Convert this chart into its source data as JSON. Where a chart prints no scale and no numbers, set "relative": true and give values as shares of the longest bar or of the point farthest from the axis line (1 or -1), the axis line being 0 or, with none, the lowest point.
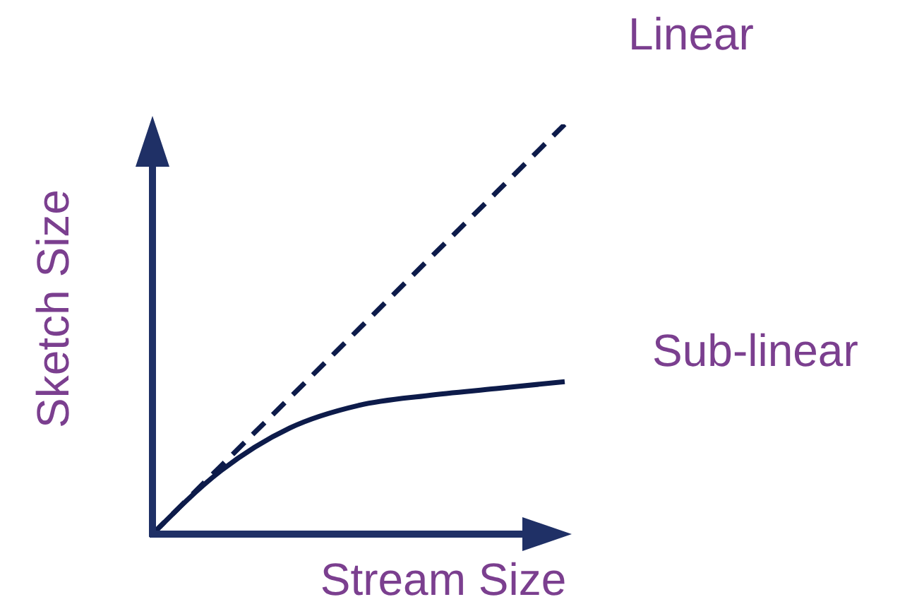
{
  "chart_data": {
    "type": "line",
    "relative": true,
    "xlabel": "Stream Size",
    "ylabel": "Sketch Size",
    "categories": [
      null,
      null,
      null,
      null,
      null,
      null,
      null
    ],
    "series": [
      {
        "name": "Linear",
        "color": "#0d1b4a",
        "line_style": "dashed",
        "values": [
          0,
          0.167,
          0.333,
          0.5,
          0.667,
          0.833,
          1
        ]
      },
      {
        "name": "Sub-linear",
        "color": "#0d1b4a",
        "line_style": "solid",
        "values": [
          0,
          0.155,
          0.259,
          0.314,
          0.338,
          0.355,
          0.372
        ]
      }
    ]
  }
}
